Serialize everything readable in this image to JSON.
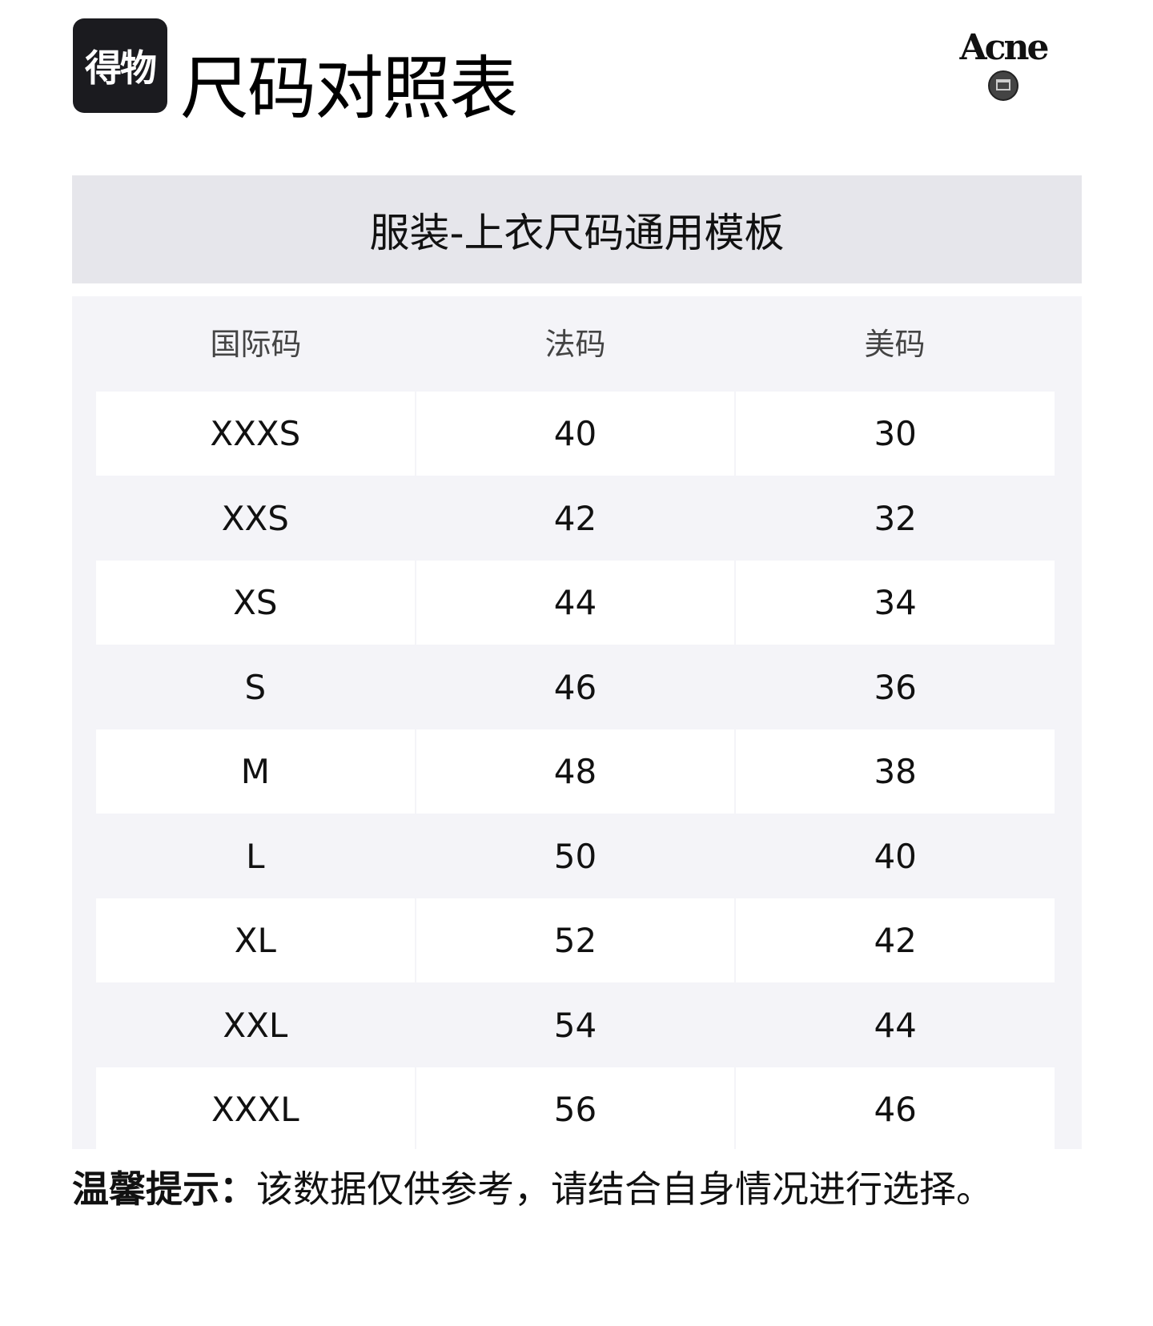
{
  "header": {
    "brand_logo_text": "得物",
    "title": "尺码对照表",
    "partner_logo_text": "Acne"
  },
  "section_title": "服装-上衣尺码通用模板",
  "table": {
    "columns": [
      "国际码",
      "法码",
      "美码"
    ],
    "rows": [
      [
        "XXXS",
        "40",
        "30"
      ],
      [
        "XXS",
        "42",
        "32"
      ],
      [
        "XS",
        "44",
        "34"
      ],
      [
        "S",
        "46",
        "36"
      ],
      [
        "M",
        "48",
        "38"
      ],
      [
        "L",
        "50",
        "40"
      ],
      [
        "XL",
        "52",
        "42"
      ],
      [
        "XXL",
        "54",
        "44"
      ],
      [
        "XXXL",
        "56",
        "46"
      ]
    ]
  },
  "footer": {
    "tip_label": "温馨提示：",
    "tip_text": "该数据仅供参考，请结合自身情况进行选择。"
  },
  "colors": {
    "band": "#e6e6eb",
    "table_bg": "#f4f4f8",
    "brand_box": "#1b1b1f"
  }
}
